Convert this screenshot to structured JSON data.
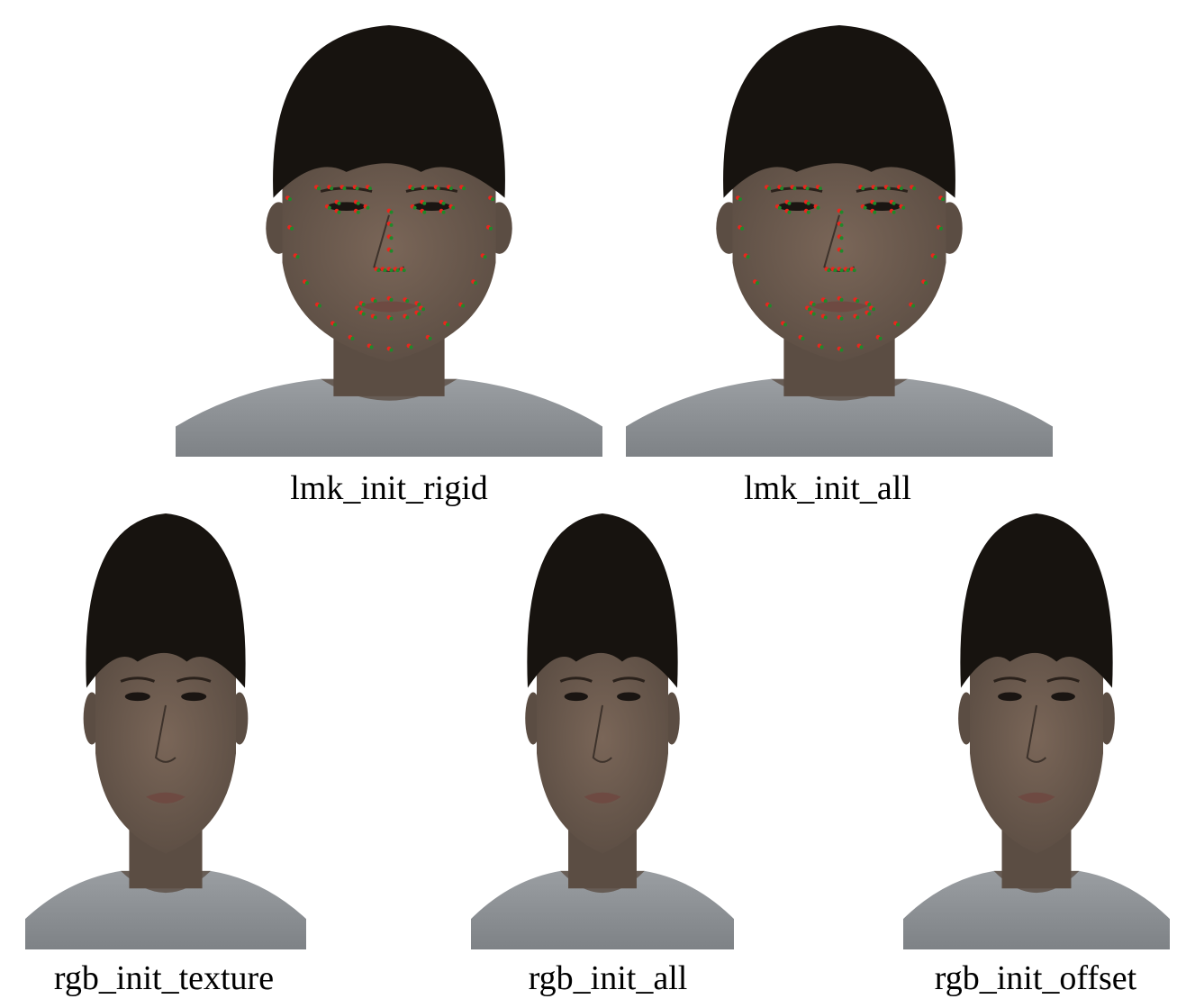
{
  "captions": {
    "lmk_rigid": "lmk_init_rigid",
    "lmk_all": "lmk_init_all",
    "rgb_texture": "rgb_init_texture",
    "rgb_all": "rgb_init_all",
    "rgb_offset": "rgb_init_offset"
  },
  "colors": {
    "background": "#ffffff",
    "skin": "#5b4d43",
    "hair": "#17130f",
    "shirt": "#7e8286",
    "landmark_detected": "#e8261e",
    "landmark_projected": "#1f8a2a"
  }
}
